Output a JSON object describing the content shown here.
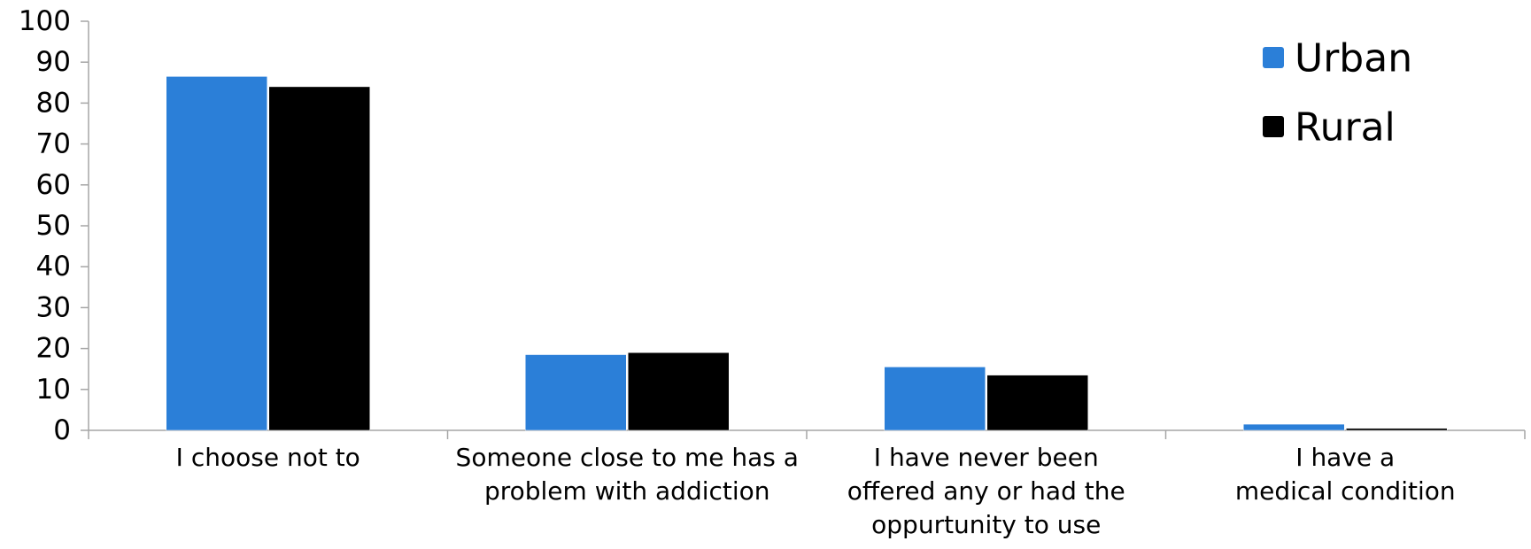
{
  "chart_data": {
    "type": "bar",
    "title": "",
    "xlabel": "",
    "ylabel": "",
    "ylim": [
      0,
      100
    ],
    "yticks": [
      0,
      10,
      20,
      30,
      40,
      50,
      60,
      70,
      80,
      90,
      100
    ],
    "categories": [
      [
        "I choose not to"
      ],
      [
        "Someone close to me has a",
        "problem with addiction"
      ],
      [
        "I have never been",
        "offered any or had the",
        "oppurtunity to use"
      ],
      [
        "I have a",
        "medical condition"
      ]
    ],
    "series": [
      {
        "name": "Urban",
        "color": "#2B7FD8",
        "values": [
          86.5,
          18.5,
          15.5,
          1.5
        ]
      },
      {
        "name": "Rural",
        "color": "#000000",
        "values": [
          84,
          19,
          13.5,
          0.5
        ]
      }
    ],
    "grid": false,
    "legend_position": "top-right"
  }
}
